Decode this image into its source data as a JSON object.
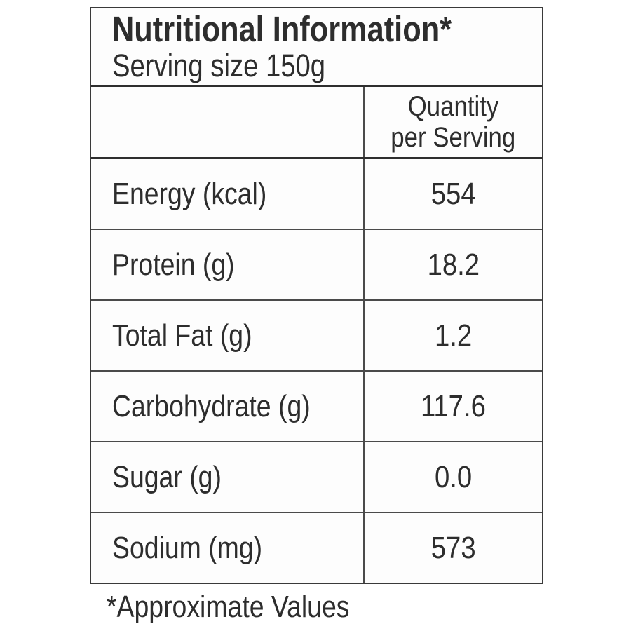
{
  "table": {
    "title": "Nutritional Information*",
    "serving_size": "Serving size 150g",
    "column_header": {
      "line1": "Quantity",
      "line2": "per Serving"
    },
    "rows": [
      {
        "label": "Energy (kcal)",
        "value": "554"
      },
      {
        "label": "Protein (g)",
        "value": "18.2"
      },
      {
        "label": "Total Fat (g)",
        "value": "1.2"
      },
      {
        "label": "Carbohydrate (g)",
        "value": "117.6"
      },
      {
        "label": "Sugar (g)",
        "value": "0.0"
      },
      {
        "label": "Sodium (mg)",
        "value": "573"
      }
    ],
    "footnote": "*Approximate Values"
  },
  "colors": {
    "text": "#2d2d2d",
    "border_heavy": "#2e2e2e",
    "border_light": "#4a4a4a",
    "background": "#ffffff"
  }
}
